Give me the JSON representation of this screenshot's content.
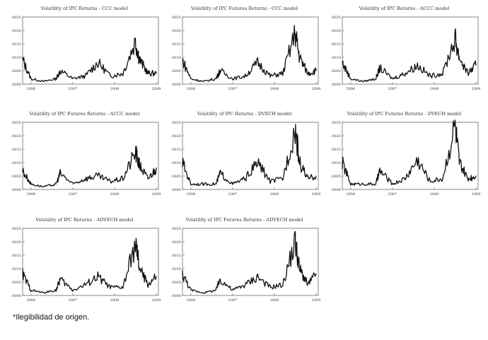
{
  "note": "*Ilegibilidad de origen.",
  "chart_data": [
    {
      "type": "line",
      "title": "Volatility of IPC Returns - CCC model",
      "x": [
        2005.8,
        2006.0,
        2006.3,
        2006.6,
        2006.7,
        2007.0,
        2007.3,
        2007.6,
        2007.9,
        2008.2,
        2008.5,
        2008.6,
        2008.8,
        2009.0
      ],
      "y": [
        0.0009,
        0.0002,
        0.0001,
        0.0002,
        0.0005,
        0.0002,
        0.0003,
        0.0008,
        0.0003,
        0.0004,
        0.0016,
        0.0009,
        0.0004,
        0.0004
      ],
      "xlim": [
        2005.8,
        2009.05
      ],
      "ylim": [
        0,
        0.0025
      ],
      "xticks": [
        "2006",
        "2007",
        "2008",
        "2009"
      ],
      "yticks": [
        ".0000",
        ".0005",
        ".0010",
        ".0015",
        ".0020",
        ".0025"
      ]
    },
    {
      "type": "line",
      "title": "Volatility of IPC Futures Returns - CCC model",
      "x": [
        2005.8,
        2006.0,
        2006.3,
        2006.6,
        2006.7,
        2007.0,
        2007.3,
        2007.6,
        2007.9,
        2008.2,
        2008.5,
        2008.6,
        2008.8,
        2009.0
      ],
      "y": [
        0.0009,
        0.0002,
        0.0001,
        0.0002,
        0.0005,
        0.0002,
        0.0003,
        0.0008,
        0.0003,
        0.0004,
        0.0019,
        0.001,
        0.0004,
        0.0005
      ],
      "xlim": [
        2005.8,
        2009.05
      ],
      "ylim": [
        0,
        0.0025
      ],
      "xticks": [
        "2006",
        "2007",
        "2008",
        "2009"
      ],
      "yticks": [
        ".0000",
        ".0005",
        ".0010",
        ".0015",
        ".0020",
        ".0025"
      ]
    },
    {
      "type": "line",
      "title": "Volatility of IPC Returns - ACCC model",
      "x": [
        2005.8,
        2006.0,
        2006.3,
        2006.6,
        2006.7,
        2007.0,
        2007.3,
        2007.6,
        2007.9,
        2008.2,
        2008.5,
        2008.6,
        2008.8,
        2009.0
      ],
      "y": [
        0.0008,
        0.0002,
        0.0001,
        0.0002,
        0.0006,
        0.0002,
        0.0004,
        0.0007,
        0.0003,
        0.0004,
        0.0017,
        0.001,
        0.0004,
        0.0007
      ],
      "xlim": [
        2005.8,
        2009.05
      ],
      "ylim": [
        0,
        0.0025
      ],
      "xticks": [
        "2006",
        "2007",
        "2008",
        "2009"
      ],
      "yticks": [
        ".0000",
        ".0005",
        ".0010",
        ".0015",
        ".0020",
        ".0025"
      ]
    },
    {
      "type": "line",
      "title": "Volatility of IPC Futures Returns - ACCC model",
      "x": [
        2005.8,
        2006.0,
        2006.3,
        2006.6,
        2006.7,
        2007.0,
        2007.3,
        2007.6,
        2007.9,
        2008.2,
        2008.5,
        2008.6,
        2008.8,
        2009.0
      ],
      "y": [
        0.0007,
        0.0002,
        0.0001,
        0.0002,
        0.0006,
        0.0002,
        0.0004,
        0.0005,
        0.0003,
        0.0004,
        0.0014,
        0.0009,
        0.0004,
        0.0008
      ],
      "xlim": [
        2005.8,
        2009.05
      ],
      "ylim": [
        0,
        0.0025
      ],
      "xticks": [
        "2006",
        "2007",
        "2008",
        "2009"
      ],
      "yticks": [
        ".0000",
        ".0005",
        ".0010",
        ".0015",
        ".0020",
        ".0025"
      ]
    },
    {
      "type": "line",
      "title": "Volatility of IPC Returns - DVECH model",
      "x": [
        2005.8,
        2006.0,
        2006.3,
        2006.6,
        2006.7,
        2007.0,
        2007.3,
        2007.6,
        2007.9,
        2008.2,
        2008.5,
        2008.6,
        2008.8,
        2009.0
      ],
      "y": [
        0.001,
        0.0002,
        0.0002,
        0.0002,
        0.0006,
        0.0002,
        0.0004,
        0.001,
        0.0003,
        0.0004,
        0.0023,
        0.001,
        0.0004,
        0.0005
      ],
      "xlim": [
        2005.8,
        2009.05
      ],
      "ylim": [
        0,
        0.0025
      ],
      "xticks": [
        "2006",
        "2007",
        "2008",
        "2009"
      ],
      "yticks": [
        ".0000",
        ".0005",
        ".0010",
        ".0015",
        ".0020",
        ".0025"
      ]
    },
    {
      "type": "line",
      "title": "Volatility of IPC Futures Returns - DVECH model",
      "x": [
        2005.8,
        2006.0,
        2006.3,
        2006.6,
        2006.7,
        2007.0,
        2007.3,
        2007.6,
        2007.9,
        2008.2,
        2008.5,
        2008.6,
        2008.8,
        2009.0
      ],
      "y": [
        0.001,
        0.0002,
        0.0002,
        0.0002,
        0.0007,
        0.0002,
        0.0004,
        0.0011,
        0.0003,
        0.0004,
        0.0024,
        0.001,
        0.0004,
        0.0005
      ],
      "xlim": [
        2005.8,
        2009.05
      ],
      "ylim": [
        0,
        0.0025
      ],
      "xticks": [
        "2006",
        "2007",
        "2008",
        "2009"
      ],
      "yticks": [
        ".0000",
        ".0005",
        ".0010",
        ".0015",
        ".0020",
        ".0025"
      ]
    },
    {
      "type": "line",
      "title": "Volatility of IPC Returns - ADVECH model",
      "x": [
        2005.8,
        2006.0,
        2006.3,
        2006.6,
        2006.7,
        2007.0,
        2007.3,
        2007.6,
        2007.9,
        2008.2,
        2008.5,
        2008.6,
        2008.8,
        2009.0
      ],
      "y": [
        0.0008,
        0.0002,
        0.0001,
        0.0002,
        0.0006,
        0.0002,
        0.0004,
        0.0007,
        0.0003,
        0.0003,
        0.0019,
        0.001,
        0.0004,
        0.0007
      ],
      "xlim": [
        2005.8,
        2009.05
      ],
      "ylim": [
        0,
        0.0025
      ],
      "xticks": [
        "2006",
        "2007",
        "2008",
        "2009"
      ],
      "yticks": [
        ".0000",
        ".0005",
        ".0010",
        ".0015",
        ".0020",
        ".0025"
      ]
    },
    {
      "type": "line",
      "title": "Volatility of IPC Futures Returns - ADVECH model",
      "x": [
        2005.8,
        2006.0,
        2006.3,
        2006.6,
        2006.7,
        2007.0,
        2007.3,
        2007.6,
        2007.9,
        2008.2,
        2008.5,
        2008.6,
        2008.8,
        2009.0
      ],
      "y": [
        0.0008,
        0.0002,
        0.0001,
        0.0002,
        0.0006,
        0.0002,
        0.0004,
        0.0007,
        0.0003,
        0.0004,
        0.002,
        0.001,
        0.0004,
        0.0008
      ],
      "xlim": [
        2005.8,
        2009.05
      ],
      "ylim": [
        0,
        0.0025
      ],
      "xticks": [
        "2006",
        "2007",
        "2008",
        "2009"
      ],
      "yticks": [
        ".0000",
        ".0005",
        ".0010",
        ".0015",
        ".0020",
        ".0025"
      ]
    }
  ]
}
